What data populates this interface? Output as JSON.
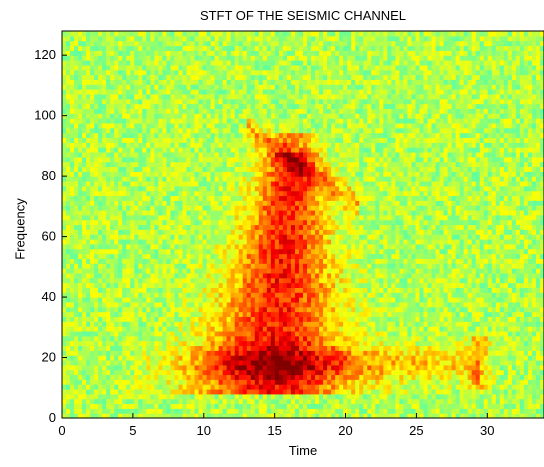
{
  "chart_data": {
    "type": "heatmap",
    "title": "STFT OF THE SEISMIC CHANNEL",
    "xlabel": "Time",
    "ylabel": "Frequency",
    "xlim": [
      0,
      34
    ],
    "ylim": [
      0,
      128
    ],
    "xticks": [
      0,
      5,
      10,
      15,
      20,
      25,
      30
    ],
    "yticks": [
      0,
      20,
      40,
      60,
      80,
      100,
      120
    ],
    "colormap": "jet",
    "colors": {
      "background_low": "#6fe0a8",
      "mid": "#f2f200",
      "high": "#e06010",
      "peak": "#c82000"
    },
    "features": [
      {
        "name": "main energy column",
        "time_center": 15.3,
        "freq_range": [
          10,
          90
        ]
      },
      {
        "name": "left low-frequency arm",
        "time_range": [
          4,
          15
        ],
        "freq_center": 18
      },
      {
        "name": "right low-frequency arm",
        "time_range": [
          15,
          29
        ],
        "freq_center": 18
      },
      {
        "name": "upper branch",
        "time_range": [
          13,
          21
        ],
        "freq_range": [
          70,
          96
        ]
      },
      {
        "name": "late spike",
        "time_center": 29.5,
        "freq_range": [
          10,
          28
        ]
      }
    ]
  }
}
